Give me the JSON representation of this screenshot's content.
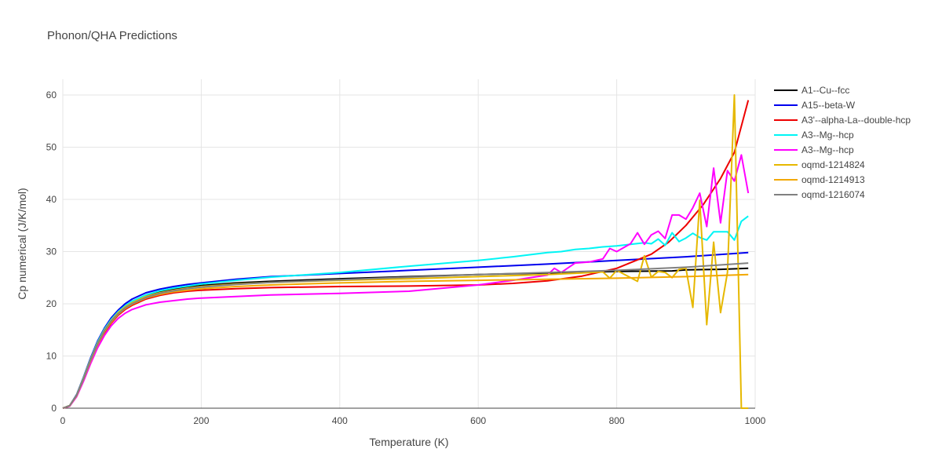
{
  "chart_data": {
    "type": "line",
    "title": "Phonon/QHA Predictions",
    "xlabel": "Temperature (K)",
    "ylabel": "Cp numerical (J/K/mol)",
    "xlim": [
      0,
      1000
    ],
    "ylim": [
      0,
      63
    ],
    "xticks": [
      0,
      200,
      400,
      600,
      800,
      1000
    ],
    "yticks": [
      0,
      10,
      20,
      30,
      40,
      50,
      60
    ],
    "grid": true,
    "legend_position": "top-right",
    "series": [
      {
        "name": "A1--Cu--fcc",
        "color": "#000000",
        "x": [
          0,
          10,
          20,
          30,
          40,
          50,
          60,
          70,
          80,
          90,
          100,
          120,
          140,
          160,
          180,
          200,
          250,
          300,
          400,
          500,
          600,
          700,
          800,
          880,
          900,
          950,
          990
        ],
        "y": [
          0,
          0.5,
          2.5,
          5.8,
          9.3,
          12.4,
          14.9,
          16.8,
          18.3,
          19.4,
          20.3,
          21.5,
          22.3,
          22.8,
          23.2,
          23.5,
          24.0,
          24.3,
          24.8,
          25.2,
          25.6,
          25.9,
          26.2,
          26.3,
          26.5,
          26.6,
          26.8
        ]
      },
      {
        "name": "A15--beta-W",
        "color": "#0000ee",
        "x": [
          0,
          10,
          20,
          30,
          40,
          50,
          60,
          70,
          80,
          90,
          100,
          120,
          140,
          160,
          180,
          200,
          250,
          300,
          400,
          500,
          600,
          700,
          800,
          900,
          990
        ],
        "y": [
          0,
          0.5,
          2.6,
          6.0,
          9.6,
          12.8,
          15.3,
          17.3,
          18.8,
          20.0,
          20.9,
          22.1,
          22.8,
          23.3,
          23.7,
          24.0,
          24.7,
          25.2,
          25.8,
          26.4,
          27.0,
          27.6,
          28.3,
          29.0,
          29.8
        ]
      },
      {
        "name": "A3'--alpha-La--double-hcp",
        "color": "#ee0000",
        "x": [
          0,
          10,
          20,
          30,
          40,
          50,
          60,
          70,
          80,
          90,
          100,
          120,
          140,
          160,
          180,
          200,
          250,
          300,
          400,
          500,
          600,
          650,
          700,
          750,
          800,
          850,
          875,
          900,
          925,
          950,
          970,
          990
        ],
        "y": [
          0,
          0.4,
          2.3,
          5.4,
          8.8,
          11.9,
          14.4,
          16.3,
          17.8,
          18.9,
          19.7,
          20.9,
          21.6,
          22.1,
          22.4,
          22.6,
          22.9,
          23.1,
          23.3,
          23.4,
          23.6,
          23.9,
          24.4,
          25.3,
          26.8,
          29.5,
          31.8,
          35.0,
          39.0,
          44.0,
          49.0,
          59.0
        ]
      },
      {
        "name": "A3--Mg--hcp",
        "color": "#00f5f5",
        "x": [
          0,
          10,
          20,
          30,
          40,
          50,
          60,
          70,
          80,
          90,
          100,
          120,
          140,
          160,
          180,
          200,
          250,
          300,
          400,
          500,
          600,
          650,
          700,
          720,
          740,
          760,
          780,
          800,
          820,
          840,
          850,
          860,
          870,
          880,
          890,
          900,
          910,
          920,
          930,
          940,
          950,
          960,
          970,
          980,
          990
        ],
        "y": [
          0,
          0.5,
          2.5,
          5.9,
          9.4,
          12.6,
          15.1,
          17.0,
          18.5,
          19.6,
          20.5,
          21.7,
          22.5,
          23.0,
          23.4,
          23.8,
          24.5,
          25.1,
          26.0,
          27.2,
          28.3,
          29.0,
          29.8,
          30.0,
          30.4,
          30.6,
          30.9,
          31.1,
          31.4,
          31.7,
          31.5,
          32.4,
          31.2,
          33.6,
          31.9,
          32.6,
          33.5,
          32.7,
          32.2,
          33.8,
          33.8,
          33.8,
          32.2,
          35.8,
          36.8
        ]
      },
      {
        "name": "A3--Mg--hcp",
        "color": "#ff00ff",
        "x": [
          0,
          10,
          20,
          30,
          40,
          50,
          60,
          70,
          80,
          90,
          100,
          120,
          140,
          160,
          180,
          200,
          250,
          300,
          400,
          500,
          600,
          650,
          700,
          710,
          720,
          740,
          760,
          780,
          790,
          800,
          820,
          830,
          840,
          850,
          860,
          870,
          880,
          890,
          900,
          910,
          920,
          930,
          940,
          950,
          960,
          970,
          980,
          990
        ],
        "y": [
          0,
          0.4,
          2.2,
          5.2,
          8.5,
          11.5,
          13.9,
          15.8,
          17.2,
          18.2,
          18.9,
          19.8,
          20.3,
          20.6,
          20.9,
          21.1,
          21.4,
          21.7,
          22.0,
          22.4,
          23.6,
          24.5,
          25.5,
          26.8,
          26.0,
          27.8,
          28.0,
          28.6,
          30.6,
          30.0,
          31.5,
          33.6,
          31.4,
          33.2,
          33.9,
          32.5,
          37.0,
          37.0,
          36.2,
          38.4,
          41.2,
          34.8,
          46.0,
          35.5,
          45.5,
          43.5,
          48.5,
          41.2
        ]
      },
      {
        "name": "oqmd-1214824",
        "color": "#e6b800",
        "x": [
          0,
          10,
          20,
          30,
          40,
          50,
          60,
          70,
          80,
          90,
          100,
          120,
          140,
          160,
          180,
          200,
          250,
          300,
          400,
          500,
          600,
          700,
          750,
          780,
          790,
          800,
          830,
          840,
          850,
          860,
          870,
          880,
          890,
          900,
          910,
          920,
          930,
          940,
          950,
          960,
          970,
          980,
          990
        ],
        "y": [
          0,
          0.5,
          2.5,
          5.8,
          9.3,
          12.4,
          14.9,
          16.8,
          18.3,
          19.4,
          20.2,
          21.4,
          22.1,
          22.6,
          23.0,
          23.3,
          23.8,
          24.1,
          24.5,
          24.8,
          25.2,
          25.6,
          25.9,
          26.1,
          24.9,
          26.4,
          24.3,
          29.2,
          25.1,
          26.2,
          26.0,
          25.0,
          26.6,
          26.8,
          19.3,
          39.8,
          16.0,
          31.8,
          18.3,
          26.0,
          60.0,
          0,
          0
        ]
      },
      {
        "name": "oqmd-1214913",
        "color": "#f2a800",
        "x": [
          0,
          10,
          20,
          30,
          40,
          50,
          60,
          70,
          80,
          90,
          100,
          120,
          140,
          160,
          180,
          200,
          250,
          300,
          400,
          500,
          600,
          700,
          800,
          900,
          990
        ],
        "y": [
          0,
          0.5,
          2.4,
          5.6,
          9.0,
          12.1,
          14.6,
          16.5,
          18.0,
          19.1,
          19.9,
          21.1,
          21.8,
          22.3,
          22.6,
          22.9,
          23.3,
          23.6,
          24.0,
          24.3,
          24.5,
          24.7,
          24.9,
          25.2,
          25.6
        ]
      },
      {
        "name": "oqmd-1216074",
        "color": "#808080",
        "x": [
          0,
          10,
          20,
          30,
          40,
          50,
          60,
          70,
          80,
          90,
          100,
          120,
          140,
          160,
          180,
          200,
          250,
          300,
          400,
          500,
          600,
          700,
          800,
          900,
          990
        ],
        "y": [
          0,
          0.5,
          2.5,
          5.7,
          9.2,
          12.3,
          14.8,
          16.7,
          18.1,
          19.2,
          20.0,
          21.2,
          22.0,
          22.5,
          22.9,
          23.2,
          23.7,
          24.1,
          24.6,
          25.1,
          25.6,
          26.0,
          26.4,
          27.0,
          27.8
        ]
      }
    ]
  }
}
